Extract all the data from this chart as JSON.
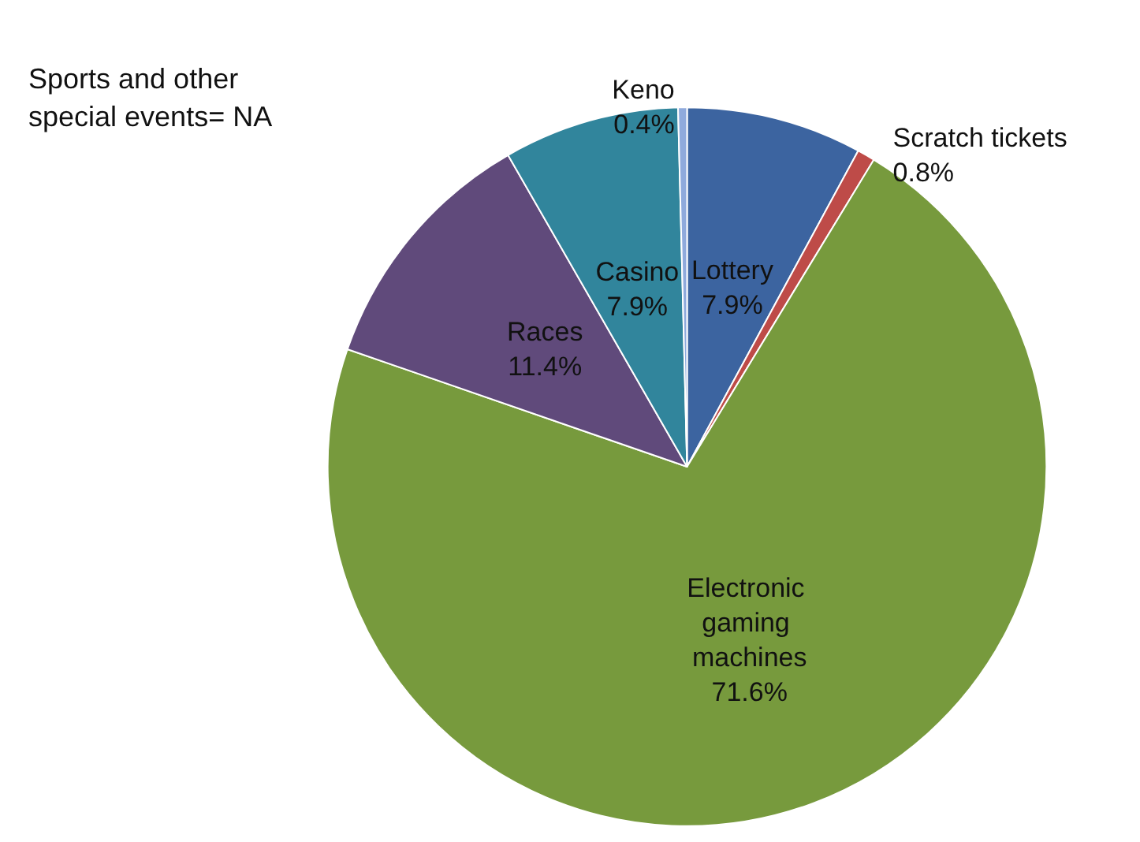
{
  "chart_data": {
    "type": "pie",
    "categories": [
      "Lottery",
      "Scratch tickets",
      "Electronic gaming machines",
      "Races",
      "Casino",
      "Keno"
    ],
    "values": [
      7.9,
      0.8,
      71.6,
      11.4,
      7.9,
      0.4
    ],
    "value_labels": [
      "7.9%",
      "0.8%",
      "71.6%",
      "11.4%",
      "7.9%",
      "0.4%"
    ],
    "colors": [
      "#3c64a0",
      "#be4b48",
      "#779a3d",
      "#604a7b",
      "#31859c",
      "#8faadc"
    ],
    "annotations": [
      "Sports and other special events= NA"
    ],
    "legend": false
  }
}
